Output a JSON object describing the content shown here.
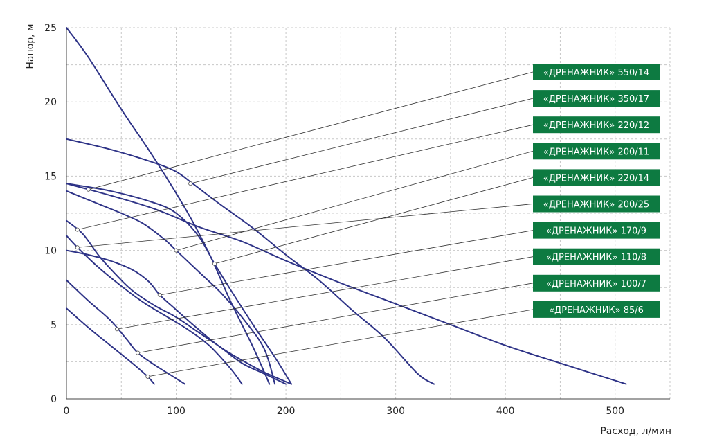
{
  "chart_data": {
    "type": "line",
    "xlabel": "Расход, л/мин",
    "ylabel": "Напор, м",
    "xlim": [
      0,
      550
    ],
    "ylim": [
      0,
      25
    ],
    "x_ticks": [
      "0",
      "100",
      "200",
      "300",
      "400",
      "500"
    ],
    "y_ticks": [
      "0",
      "5",
      "10",
      "15",
      "20",
      "25"
    ],
    "grid": true,
    "legend_placement": "right",
    "colors": {
      "curve": "#2e3387",
      "legend_bg": "#0d7a41",
      "legend_text": "#ffffff",
      "leader": "#333333",
      "grid": "#c8c8c8"
    },
    "series": [
      {
        "name": "«ДРЕНАЖНИК» 550/14",
        "marker": [
          20,
          14.1
        ],
        "points": [
          [
            0,
            14.5
          ],
          [
            40,
            13.7
          ],
          [
            80,
            12.8
          ],
          [
            120,
            11.6
          ],
          [
            160,
            10.6
          ],
          [
            200,
            9.3
          ],
          [
            250,
            7.8
          ],
          [
            300,
            6.4
          ],
          [
            350,
            5.0
          ],
          [
            400,
            3.6
          ],
          [
            450,
            2.4
          ],
          [
            510,
            1.0
          ]
        ]
      },
      {
        "name": "«ДРЕНАЖНИК» 350/17",
        "marker": [
          113,
          14.5
        ],
        "points": [
          [
            0,
            17.5
          ],
          [
            40,
            16.8
          ],
          [
            80,
            15.9
          ],
          [
            100,
            15.3
          ],
          [
            115,
            14.5
          ],
          [
            140,
            13.1
          ],
          [
            170,
            11.5
          ],
          [
            200,
            9.7
          ],
          [
            230,
            8.0
          ],
          [
            260,
            6.0
          ],
          [
            290,
            4.1
          ],
          [
            320,
            1.7
          ],
          [
            335,
            1.0
          ]
        ]
      },
      {
        "name": "«ДРЕНАЖНИК» 220/12",
        "marker": [
          10,
          11.4
        ],
        "points": [
          [
            0,
            25.0
          ],
          [
            20,
            23.0
          ],
          [
            50,
            19.5
          ],
          [
            80,
            16.2
          ],
          [
            110,
            12.6
          ],
          [
            130,
            9.8
          ],
          [
            150,
            6.5
          ],
          [
            170,
            3.5
          ],
          [
            185,
            1.0
          ]
        ]
      },
      {
        "name": "«ДРЕНАЖНИК» 200/11",
        "marker": [
          100,
          10.0
        ],
        "points": [
          [
            0,
            14.0
          ],
          [
            20,
            13.4
          ],
          [
            50,
            12.5
          ],
          [
            70,
            11.8
          ],
          [
            90,
            10.7
          ],
          [
            100,
            10.0
          ],
          [
            120,
            8.6
          ],
          [
            140,
            7.2
          ],
          [
            160,
            5.5
          ],
          [
            180,
            3.4
          ],
          [
            190,
            1.0
          ]
        ]
      },
      {
        "name": "«ДРЕНАЖНИК» 220/14",
        "marker": [
          135,
          9.1
        ],
        "points": [
          [
            0,
            14.5
          ],
          [
            40,
            14.0
          ],
          [
            80,
            13.2
          ],
          [
            100,
            12.5
          ],
          [
            120,
            11.0
          ],
          [
            135,
            9.1
          ],
          [
            150,
            7.3
          ],
          [
            170,
            5.0
          ],
          [
            190,
            2.8
          ],
          [
            205,
            1.0
          ]
        ]
      },
      {
        "name": "«ДРЕНАЖНИК» 200/25",
        "marker": [
          10,
          10.2
        ],
        "points": [
          [
            0,
            11.0
          ],
          [
            10,
            10.2
          ],
          [
            30,
            8.8
          ],
          [
            50,
            7.6
          ],
          [
            70,
            6.5
          ],
          [
            90,
            5.6
          ],
          [
            110,
            4.7
          ],
          [
            130,
            3.6
          ],
          [
            150,
            2.0
          ],
          [
            160,
            1.0
          ]
        ]
      },
      {
        "name": "«ДРЕНАЖНИК» 170/9",
        "marker": [
          85,
          7.0
        ],
        "points": [
          [
            0,
            10.0
          ],
          [
            20,
            9.7
          ],
          [
            40,
            9.3
          ],
          [
            60,
            8.7
          ],
          [
            75,
            7.9
          ],
          [
            85,
            7.0
          ],
          [
            100,
            6.0
          ],
          [
            120,
            4.7
          ],
          [
            140,
            3.5
          ],
          [
            160,
            2.6
          ],
          [
            180,
            1.8
          ],
          [
            205,
            1.0
          ]
        ]
      },
      {
        "name": "«ДРЕНАЖНИК» 110/8",
        "marker": [
          46,
          4.7
        ],
        "points": [
          [
            0,
            12.0
          ],
          [
            15,
            11.1
          ],
          [
            30,
            9.6
          ],
          [
            46,
            8.3
          ],
          [
            60,
            7.3
          ],
          [
            80,
            6.3
          ],
          [
            100,
            5.5
          ],
          [
            120,
            4.5
          ],
          [
            140,
            3.5
          ],
          [
            160,
            2.4
          ],
          [
            180,
            1.7
          ],
          [
            200,
            1.0
          ]
        ]
      },
      {
        "name": "«ДРЕНАЖНИК» 100/7",
        "marker": [
          65,
          3.1
        ],
        "points": [
          [
            0,
            8.0
          ],
          [
            20,
            6.6
          ],
          [
            40,
            5.3
          ],
          [
            55,
            4.0
          ],
          [
            65,
            3.1
          ],
          [
            80,
            2.3
          ],
          [
            95,
            1.6
          ],
          [
            108,
            1.0
          ]
        ]
      },
      {
        "name": "«ДРЕНАЖНИК» 85/6",
        "marker": [
          74,
          1.5
        ],
        "points": [
          [
            0,
            6.1
          ],
          [
            20,
            4.8
          ],
          [
            40,
            3.6
          ],
          [
            60,
            2.4
          ],
          [
            74,
            1.5
          ],
          [
            80,
            1.0
          ]
        ]
      }
    ]
  }
}
